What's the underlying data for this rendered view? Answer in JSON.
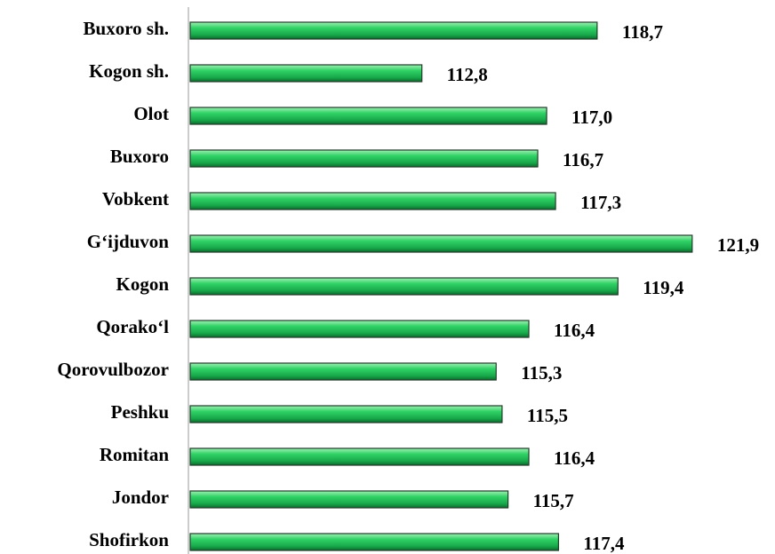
{
  "chart_data": {
    "type": "barh",
    "categories": [
      "Buxoro sh.",
      "Kogon sh.",
      "Olot",
      "Buxoro",
      "Vobkent",
      "G‘ijduvon",
      "Kogon",
      "Qorako‘l",
      "Qorovulbozor",
      "Peshku",
      "Romitan",
      "Jondor",
      "Shofirkon"
    ],
    "values": [
      118.7,
      112.8,
      117.0,
      116.7,
      117.3,
      121.9,
      119.4,
      116.4,
      115.3,
      115.5,
      116.4,
      115.7,
      117.4
    ],
    "value_labels": [
      "118,7",
      "112,8",
      "117,0",
      "116,7",
      "117,3",
      "121,9",
      "119,4",
      "116,4",
      "115,3",
      "115,5",
      "116,4",
      "115,7",
      "117,4"
    ],
    "color": "#22c55e",
    "xlim": [
      105,
      124
    ]
  }
}
